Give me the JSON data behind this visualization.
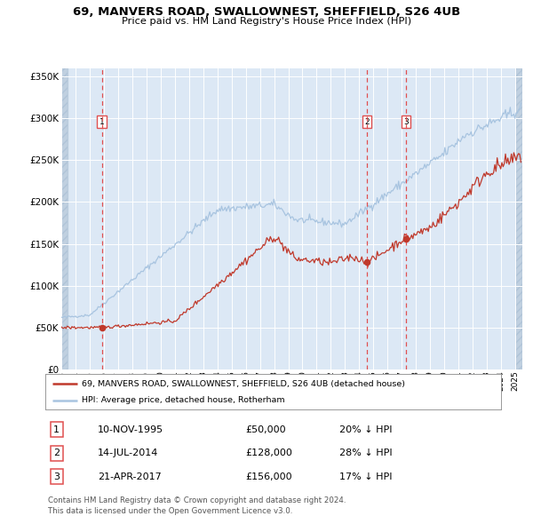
{
  "title1": "69, MANVERS ROAD, SWALLOWNEST, SHEFFIELD, S26 4UB",
  "title2": "Price paid vs. HM Land Registry's House Price Index (HPI)",
  "legend_house": "69, MANVERS ROAD, SWALLOWNEST, SHEFFIELD, S26 4UB (detached house)",
  "legend_hpi": "HPI: Average price, detached house, Rotherham",
  "transactions": [
    {
      "num": 1,
      "date": "10-NOV-1995",
      "date_val": 1995.87,
      "price": 50000,
      "pct": "20% ↓ HPI"
    },
    {
      "num": 2,
      "date": "14-JUL-2014",
      "date_val": 2014.54,
      "price": 128000,
      "pct": "28% ↓ HPI"
    },
    {
      "num": 3,
      "date": "21-APR-2017",
      "date_val": 2017.3,
      "price": 156000,
      "pct": "17% ↓ HPI"
    }
  ],
  "footer": "Contains HM Land Registry data © Crown copyright and database right 2024.\nThis data is licensed under the Open Government Licence v3.0.",
  "hpi_color": "#a8c4e0",
  "house_color": "#c0392b",
  "dashed_color": "#e05050",
  "plot_bg": "#dce8f5",
  "hatch_color": "#c0d0e0",
  "ylim": [
    0,
    360000
  ],
  "xlim_start": 1993.0,
  "xlim_end": 2025.5,
  "yticks": [
    0,
    50000,
    100000,
    150000,
    200000,
    250000,
    300000,
    350000
  ],
  "marker_prices": [
    50000,
    128000,
    156000
  ]
}
